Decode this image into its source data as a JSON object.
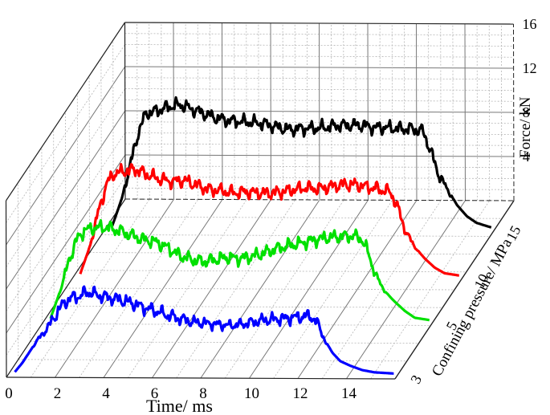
{
  "chart_data": {
    "type": "line",
    "projection": "3d-waterfall",
    "xlabel": "Time/ ms",
    "zlabel": "Force/ kN",
    "ylabel": "Confining pressure/ MPa",
    "x_ticks": [
      "0",
      "2",
      "4",
      "6",
      "8",
      "10",
      "12",
      "14"
    ],
    "z_ticks": [
      "4",
      "8",
      "12",
      "16"
    ],
    "y_ticks": [
      "3",
      "5",
      "10",
      "15"
    ],
    "xlim": [
      0,
      16
    ],
    "zlim": [
      0,
      16
    ],
    "grid": true,
    "series": [
      {
        "confining_pressure": 3,
        "color": "#0000ff",
        "points": [
          [
            0.2,
            0.0
          ],
          [
            0.5,
            0.8
          ],
          [
            0.8,
            1.8
          ],
          [
            1.1,
            2.8
          ],
          [
            1.4,
            3.6
          ],
          [
            1.7,
            4.5
          ],
          [
            2.0,
            5.6
          ],
          [
            2.3,
            6.4
          ],
          [
            2.6,
            6.8
          ],
          [
            2.9,
            6.9
          ],
          [
            3.2,
            7.3
          ],
          [
            3.6,
            7.0
          ],
          [
            4.0,
            6.8
          ],
          [
            4.5,
            6.6
          ],
          [
            5.0,
            6.3
          ],
          [
            5.5,
            5.9
          ],
          [
            6.0,
            5.6
          ],
          [
            6.5,
            5.2
          ],
          [
            7.0,
            4.9
          ],
          [
            7.5,
            4.6
          ],
          [
            8.0,
            4.5
          ],
          [
            8.5,
            4.4
          ],
          [
            9.0,
            4.3
          ],
          [
            9.5,
            4.4
          ],
          [
            10.0,
            4.6
          ],
          [
            10.5,
            4.8
          ],
          [
            11.0,
            4.9
          ],
          [
            11.5,
            5.0
          ],
          [
            12.0,
            5.1
          ],
          [
            12.4,
            5.2
          ],
          [
            12.7,
            4.4
          ],
          [
            13.0,
            2.8
          ],
          [
            13.3,
            1.8
          ],
          [
            13.6,
            1.1
          ],
          [
            14.0,
            0.7
          ],
          [
            14.5,
            0.3
          ],
          [
            15.0,
            0.1
          ],
          [
            15.8,
            0.0
          ]
        ]
      },
      {
        "confining_pressure": 5,
        "color": "#00e000",
        "points": [
          [
            0.2,
            0.0
          ],
          [
            0.6,
            2.5
          ],
          [
            1.0,
            5.5
          ],
          [
            1.3,
            7.2
          ],
          [
            1.6,
            8.0
          ],
          [
            2.0,
            8.2
          ],
          [
            2.5,
            8.3
          ],
          [
            3.0,
            8.0
          ],
          [
            3.5,
            7.6
          ],
          [
            4.0,
            7.2
          ],
          [
            4.5,
            7.0
          ],
          [
            5.0,
            6.5
          ],
          [
            5.5,
            5.8
          ],
          [
            6.0,
            5.4
          ],
          [
            6.5,
            5.2
          ],
          [
            7.0,
            5.4
          ],
          [
            7.5,
            5.6
          ],
          [
            8.0,
            5.5
          ],
          [
            8.5,
            5.7
          ],
          [
            9.0,
            6.0
          ],
          [
            9.5,
            6.4
          ],
          [
            10.0,
            6.7
          ],
          [
            10.5,
            6.9
          ],
          [
            11.0,
            7.2
          ],
          [
            11.5,
            7.4
          ],
          [
            12.0,
            7.5
          ],
          [
            12.6,
            7.6
          ],
          [
            13.0,
            7.4
          ],
          [
            13.3,
            6.0
          ],
          [
            13.6,
            4.0
          ],
          [
            14.0,
            2.5
          ],
          [
            14.4,
            1.6
          ],
          [
            14.8,
            0.8
          ],
          [
            15.2,
            0.2
          ],
          [
            15.8,
            0.0
          ]
        ]
      },
      {
        "confining_pressure": 10,
        "color": "#ff0000",
        "points": [
          [
            0.2,
            0.0
          ],
          [
            0.6,
            2.5
          ],
          [
            1.0,
            6.0
          ],
          [
            1.3,
            8.2
          ],
          [
            1.6,
            9.1
          ],
          [
            2.0,
            9.3
          ],
          [
            2.5,
            9.5
          ],
          [
            3.0,
            9.0
          ],
          [
            3.5,
            8.6
          ],
          [
            4.0,
            8.4
          ],
          [
            4.5,
            8.5
          ],
          [
            5.0,
            8.1
          ],
          [
            5.5,
            7.7
          ],
          [
            6.0,
            7.6
          ],
          [
            6.5,
            7.4
          ],
          [
            7.0,
            7.5
          ],
          [
            7.5,
            7.4
          ],
          [
            8.0,
            7.4
          ],
          [
            8.5,
            7.5
          ],
          [
            9.0,
            7.7
          ],
          [
            9.5,
            7.9
          ],
          [
            10.0,
            7.8
          ],
          [
            10.5,
            8.0
          ],
          [
            11.0,
            8.2
          ],
          [
            11.5,
            8.2
          ],
          [
            12.0,
            8.0
          ],
          [
            12.5,
            7.8
          ],
          [
            13.0,
            7.5
          ],
          [
            13.3,
            6.0
          ],
          [
            13.6,
            4.0
          ],
          [
            14.0,
            2.5
          ],
          [
            14.4,
            1.5
          ],
          [
            14.8,
            0.7
          ],
          [
            15.2,
            0.2
          ],
          [
            15.8,
            0.0
          ]
        ]
      },
      {
        "confining_pressure": 15,
        "color": "#000000",
        "points": [
          [
            0.2,
            0.0
          ],
          [
            0.6,
            2.5
          ],
          [
            1.0,
            6.0
          ],
          [
            1.3,
            8.6
          ],
          [
            1.6,
            10.2
          ],
          [
            2.0,
            10.4
          ],
          [
            2.5,
            10.8
          ],
          [
            3.0,
            11.0
          ],
          [
            3.5,
            10.6
          ],
          [
            4.0,
            10.2
          ],
          [
            4.5,
            9.8
          ],
          [
            5.0,
            9.6
          ],
          [
            5.5,
            9.5
          ],
          [
            6.0,
            9.4
          ],
          [
            6.5,
            9.3
          ],
          [
            7.0,
            9.0
          ],
          [
            7.5,
            8.8
          ],
          [
            8.0,
            8.9
          ],
          [
            8.5,
            8.9
          ],
          [
            9.0,
            9.0
          ],
          [
            9.5,
            9.2
          ],
          [
            10.0,
            9.2
          ],
          [
            10.5,
            9.2
          ],
          [
            11.0,
            9.0
          ],
          [
            11.5,
            9.0
          ],
          [
            12.0,
            8.9
          ],
          [
            12.5,
            8.9
          ],
          [
            13.0,
            8.7
          ],
          [
            13.3,
            7.0
          ],
          [
            13.6,
            5.0
          ],
          [
            14.0,
            3.4
          ],
          [
            14.4,
            2.0
          ],
          [
            14.8,
            1.0
          ],
          [
            15.2,
            0.4
          ],
          [
            15.8,
            0.0
          ]
        ]
      }
    ]
  }
}
